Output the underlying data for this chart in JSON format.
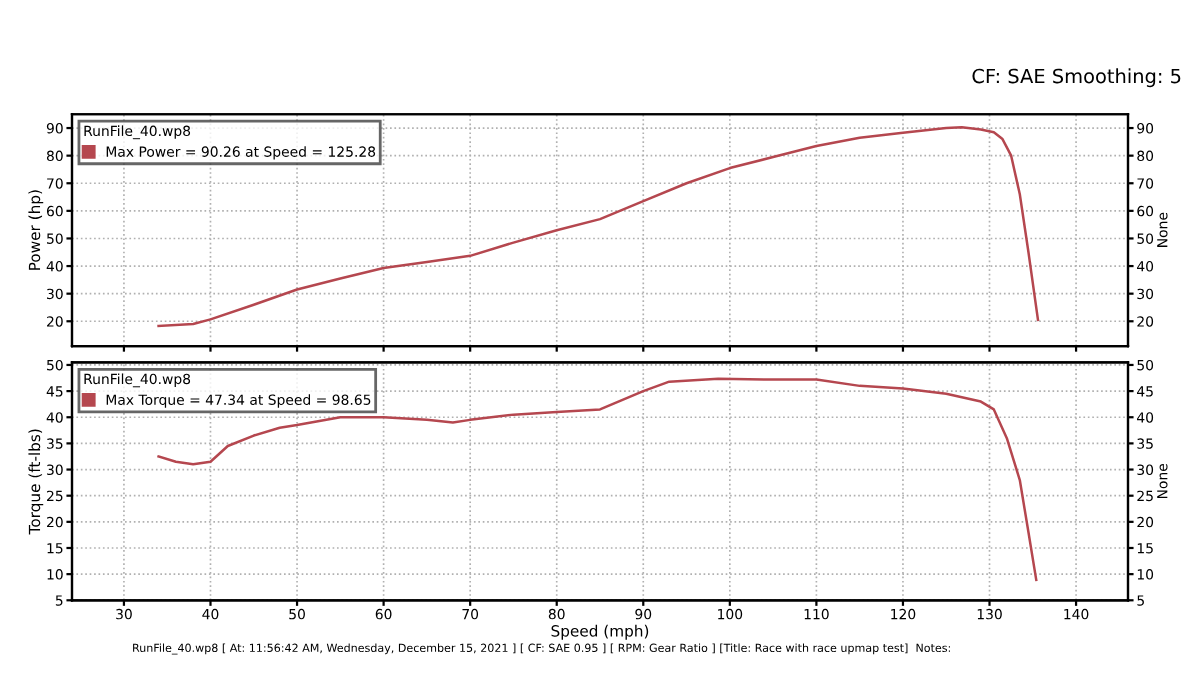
{
  "chart_data": [
    {
      "type": "line",
      "subtitle": "CF: SAE Smoothing: 5",
      "ylabel": "Power (hp)",
      "y2label": "None",
      "legend_title": "RunFile_40.wp8",
      "legend": "top left",
      "grid": true,
      "tick_labels": "y",
      "line_style": "solid",
      "marker": "none",
      "xlim": [
        24,
        146
      ],
      "xticks": [
        30,
        40,
        50,
        60,
        70,
        80,
        90,
        100,
        110,
        120,
        130,
        140
      ],
      "ylim": [
        11,
        95
      ],
      "yticks": [
        20,
        30,
        40,
        50,
        60,
        70,
        80,
        90
      ],
      "y2lim": [
        11,
        95
      ],
      "y2ticks": [
        20,
        30,
        40,
        50,
        60,
        70,
        80,
        90
      ],
      "series": [
        {
          "name": "Max Power = 90.26 at Speed = 125.28",
          "color": "#b5474f",
          "x": [
            34,
            38,
            40,
            45,
            50,
            55,
            60,
            65,
            70,
            75,
            80,
            85,
            90,
            95,
            100,
            105,
            110,
            115,
            120,
            125,
            126.8,
            129,
            130.5,
            131.5,
            132.5,
            133.5,
            134.5,
            135.6
          ],
          "values": [
            18.3,
            19,
            20.7,
            26,
            31.5,
            35.5,
            39.3,
            41.5,
            43.7,
            48.5,
            53,
            57,
            63.5,
            70,
            75.5,
            79.5,
            83.5,
            86.5,
            88.3,
            90,
            90.3,
            89.5,
            88.5,
            86,
            80,
            66,
            45,
            20.5
          ]
        }
      ]
    },
    {
      "type": "line",
      "ylabel": "Torque (ft-lbs)",
      "y2label": "None",
      "xlabel": "Speed (mph)",
      "legend_title": "RunFile_40.wp8",
      "legend": "top left",
      "grid": true,
      "line_style": "solid",
      "marker": "none",
      "xlim": [
        24,
        146
      ],
      "xticks": [
        30,
        40,
        50,
        60,
        70,
        80,
        90,
        100,
        110,
        120,
        130,
        140
      ],
      "ylim": [
        5,
        50.5
      ],
      "yticks": [
        5,
        10,
        15,
        20,
        25,
        30,
        35,
        40,
        45,
        50
      ],
      "y2lim": [
        5,
        50.5
      ],
      "y2ticks": [
        5,
        10,
        15,
        20,
        25,
        30,
        35,
        40,
        45,
        50
      ],
      "annotations": [
        "RunFile_40.wp8 [ At: 11:56:42 AM, Wednesday, December 15, 2021 ] [ CF: SAE 0.95 ] [ RPM: Gear Ratio ] [Title: Race with race upmap test]  Notes:"
      ],
      "series": [
        {
          "name": "Max Torque = 47.34 at Speed = 98.65",
          "color": "#b5474f",
          "x": [
            34,
            36,
            38,
            40,
            42,
            45,
            48,
            50,
            55,
            60,
            65,
            68,
            70,
            75,
            80,
            85,
            90,
            93,
            98.65,
            105,
            110,
            115,
            120,
            125,
            129,
            130.5,
            132,
            133.5,
            134.5,
            135.4
          ],
          "values": [
            32.5,
            31.5,
            31,
            31.5,
            34.5,
            36.5,
            38,
            38.5,
            40,
            40,
            39.5,
            39,
            39.5,
            40.5,
            41,
            41.5,
            45,
            46.8,
            47.34,
            47.2,
            47.2,
            46,
            45.5,
            44.5,
            43,
            41.5,
            36,
            28,
            18,
            8.9
          ]
        }
      ]
    }
  ]
}
